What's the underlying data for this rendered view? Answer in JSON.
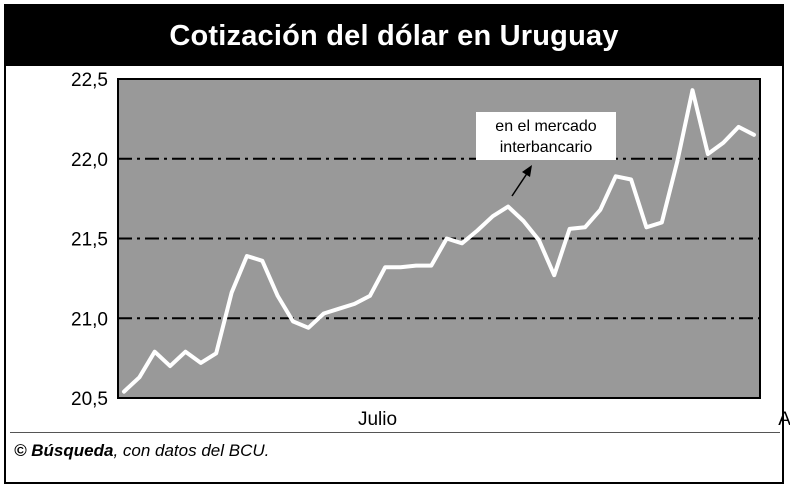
{
  "chart_data": {
    "type": "line",
    "title": "Cotización del dólar en Uruguay",
    "ylim": [
      20.5,
      22.5
    ],
    "yticks": [
      "22,5",
      "22,0",
      "21,5",
      "21,0",
      "20,5"
    ],
    "ytick_values": [
      22.5,
      22.0,
      21.5,
      21.0,
      20.5
    ],
    "xticks": [
      {
        "label": "Julio",
        "index": 16.5
      },
      {
        "label": "Agosto",
        "index": 44.5
      }
    ],
    "grid": "dash-dot horizontal",
    "annotation": {
      "lines": [
        "en el mercado",
        "interbancario"
      ]
    },
    "series": [
      {
        "values": [
          20.54,
          20.63,
          20.79,
          20.7,
          20.79,
          20.72,
          20.78,
          21.16,
          21.39,
          21.36,
          21.14,
          20.98,
          20.94,
          21.03,
          21.06,
          21.09,
          21.14,
          21.32,
          21.32,
          21.33,
          21.33,
          21.5,
          21.47,
          21.55,
          21.64,
          21.7,
          21.61,
          21.49,
          21.27,
          21.56,
          21.57,
          21.68,
          21.89,
          21.87,
          21.57,
          21.6,
          21.98,
          22.43,
          22.03,
          22.1,
          22.2,
          22.15
        ]
      }
    ],
    "series_color": "#ffffff",
    "plot_background": "#999999"
  },
  "footer": {
    "source_bold": "© Búsqueda",
    "source_rest": ", con datos del BCU."
  }
}
